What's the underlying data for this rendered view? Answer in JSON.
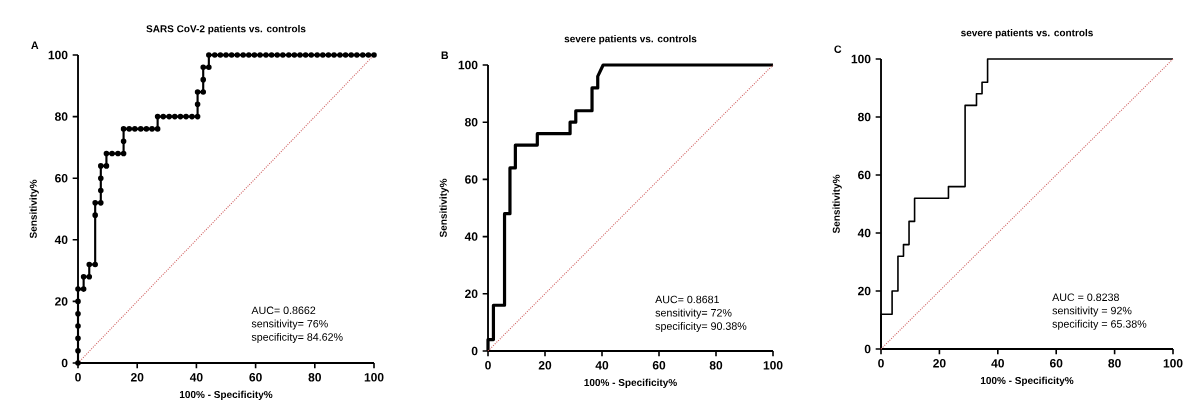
{
  "chart_data": [
    {
      "type": "line",
      "title": "SARS CoV-2 patients vs. controls",
      "xlabel": "100% - Specificity%",
      "ylabel": "Sensitivity%",
      "xlim": [
        0,
        100
      ],
      "ylim": [
        0,
        100
      ],
      "xticks": [
        0,
        20,
        40,
        60,
        80,
        100
      ],
      "yticks": [
        0,
        20,
        40,
        60,
        80,
        100
      ],
      "grid": false,
      "annotations": [
        "A",
        "AUC= 0.8662",
        "sensitivity= 76%",
        "specificity= 84.62%"
      ],
      "series": [
        {
          "color": "#000000",
          "marker": "circle",
          "line_style": "solid",
          "x": [
            0,
            0,
            0,
            0,
            0,
            0,
            0,
            1.9,
            1.9,
            3.8,
            3.8,
            5.8,
            5.8,
            5.8,
            7.7,
            7.7,
            7.7,
            7.7,
            9.6,
            9.6,
            11.5,
            13.5,
            15.4,
            15.4,
            15.4,
            17.3,
            19.2,
            21.2,
            23.1,
            25,
            26.9,
            26.9,
            28.8,
            30.8,
            32.7,
            34.6,
            36.5,
            38.5,
            40.4,
            40.4,
            40.4,
            42.3,
            42.3,
            42.3,
            44.2,
            44.2,
            46.2,
            48.1,
            50,
            51.9,
            53.8,
            55.8,
            57.7,
            59.6,
            61.5,
            63.5,
            65.4,
            67.3,
            69.2,
            71.2,
            73.1,
            75,
            76.9,
            78.8,
            80.8,
            82.7,
            84.6,
            86.5,
            88.5,
            90.4,
            92.3,
            94.2,
            96.2,
            98.1,
            100
          ],
          "values": [
            0,
            4,
            8,
            12,
            16,
            20,
            24,
            24,
            28,
            28,
            32,
            32,
            48,
            52,
            52,
            56,
            60,
            64,
            64,
            68,
            68,
            68,
            68,
            72,
            76,
            76,
            76,
            76,
            76,
            76,
            76,
            80,
            80,
            80,
            80,
            80,
            80,
            80,
            80,
            84,
            88,
            88,
            92,
            96,
            96,
            100,
            100,
            100,
            100,
            100,
            100,
            100,
            100,
            100,
            100,
            100,
            100,
            100,
            100,
            100,
            100,
            100,
            100,
            100,
            100,
            100,
            100,
            100,
            100,
            100,
            100,
            100,
            100,
            100,
            100
          ]
        },
        {
          "color": "#d06060",
          "marker": "none",
          "line_style": "dotted",
          "x": [
            0,
            100
          ],
          "values": [
            0,
            100
          ]
        }
      ]
    },
    {
      "type": "line",
      "title": "severe patients vs. controls",
      "xlabel": "100% - Specificity%",
      "ylabel": "Sensitivity%",
      "xlim": [
        0,
        100
      ],
      "ylim": [
        0,
        100
      ],
      "xticks": [
        0,
        20,
        40,
        60,
        80,
        100
      ],
      "yticks": [
        0,
        20,
        40,
        60,
        80,
        100
      ],
      "grid": false,
      "annotations": [
        "B",
        "AUC= 0.8681",
        "sensitivity= 72%",
        "specificity= 90.38%"
      ],
      "series": [
        {
          "color": "#000000",
          "marker": "none",
          "line_style": "solid",
          "x": [
            0,
            0,
            1.9,
            1.9,
            5.8,
            5.8,
            7.7,
            7.7,
            9.6,
            9.6,
            17.3,
            17.3,
            28.8,
            28.8,
            30.8,
            30.8,
            36.5,
            36.5,
            38.5,
            38.5,
            40.4,
            100
          ],
          "values": [
            0,
            4,
            4,
            16,
            16,
            48,
            48,
            64,
            64,
            72,
            72,
            76,
            76,
            80,
            80,
            84,
            84,
            92,
            92,
            96,
            100,
            100
          ]
        },
        {
          "color": "#d06060",
          "marker": "none",
          "line_style": "dotted",
          "x": [
            0,
            100
          ],
          "values": [
            0,
            100
          ]
        }
      ]
    },
    {
      "type": "line",
      "title": "severe patients vs. controls",
      "xlabel": "100% - Specificity%",
      "ylabel": "Sensitivity%",
      "xlim": [
        0,
        100
      ],
      "ylim": [
        0,
        100
      ],
      "xticks": [
        0,
        20,
        40,
        60,
        80,
        100
      ],
      "yticks": [
        0,
        20,
        40,
        60,
        80,
        100
      ],
      "grid": false,
      "annotations": [
        "C",
        "AUC = 0.8238",
        "sensitivity = 92%",
        "specificity = 65.38%"
      ],
      "series": [
        {
          "color": "#000000",
          "marker": "none",
          "line_style": "solid",
          "x": [
            0,
            0,
            3.8,
            3.8,
            5.8,
            5.8,
            7.7,
            7.7,
            9.6,
            9.6,
            11.5,
            11.5,
            23.1,
            23.1,
            28.8,
            28.8,
            32.7,
            32.7,
            34.6,
            34.6,
            36.5,
            36.5,
            100
          ],
          "values": [
            0,
            12,
            12,
            20,
            20,
            32,
            32,
            36,
            36,
            44,
            44,
            52,
            52,
            56,
            56,
            84,
            84,
            88,
            88,
            92,
            92,
            100,
            100
          ]
        },
        {
          "color": "#d06060",
          "marker": "none",
          "line_style": "dotted",
          "x": [
            0,
            100
          ],
          "values": [
            0,
            100
          ]
        }
      ]
    }
  ]
}
